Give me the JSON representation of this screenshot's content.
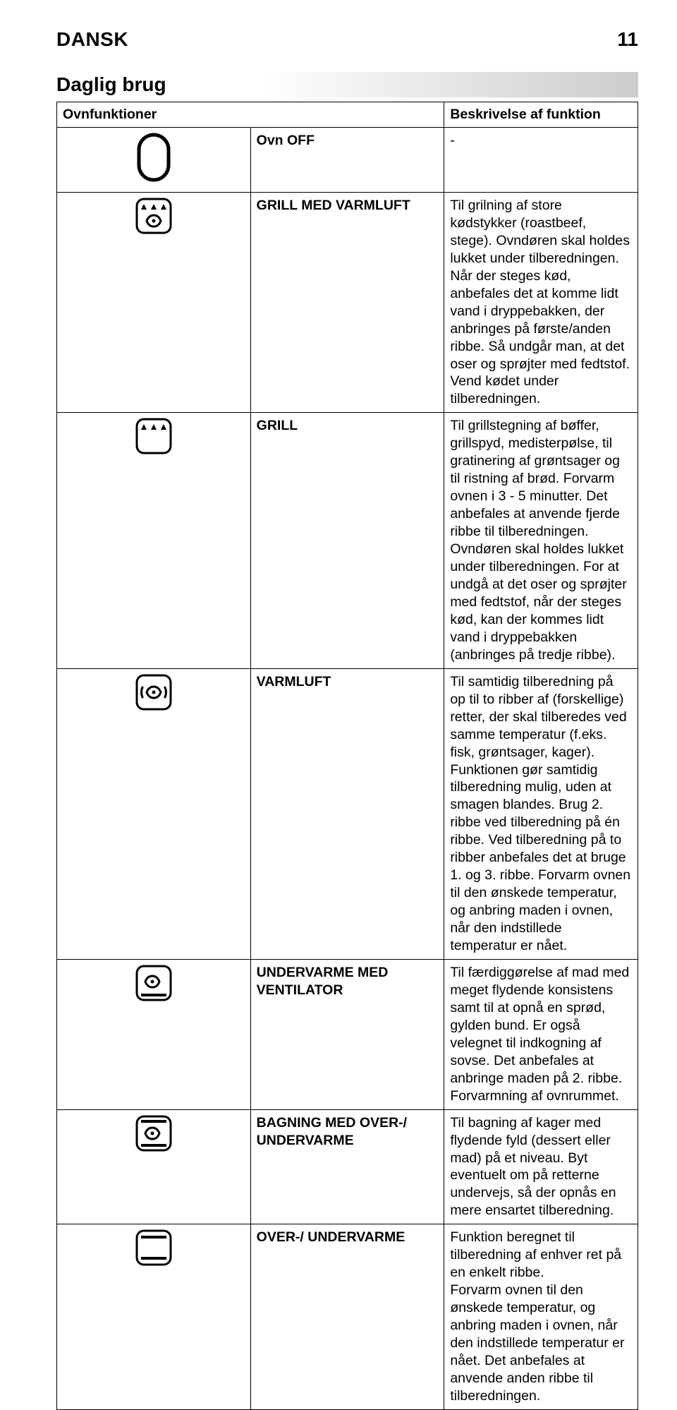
{
  "header": {
    "lang": "DANSK",
    "page": "11"
  },
  "section_title": "Daglig brug",
  "table": {
    "col_func": "Ovnfunktioner",
    "col_desc": "Beskrivelse af funktion",
    "rows": [
      {
        "icon": "oven-off",
        "func": "Ovn OFF",
        "desc": "-"
      },
      {
        "icon": "grill-fan",
        "func": "GRILL MED VARMLUFT",
        "desc": "Til grilning af store kødstykker (roastbeef, stege). Ovndøren skal holdes lukket under tilberedningen. Når der steges kød, anbefales det at komme lidt vand i dryppebakken, der anbringes på første/anden ribbe. Så undgår man, at det oser og sprøjter med fedtstof. Vend kødet under tilberedningen."
      },
      {
        "icon": "grill",
        "func": "GRILL",
        "desc": "Til grillstegning af bøffer, grillspyd, medisterpølse, til gratinering af grøntsager og til ristning af brød. Forvarm ovnen i 3 - 5 minutter. Det anbefales at anvende fjerde ribbe til tilberedningen. Ovndøren skal holdes lukket under tilberedningen. For at undgå at det oser og sprøjter med fedtstof, når der steges kød, kan der kommes lidt vand i dryppebakken (anbringes på tredje ribbe)."
      },
      {
        "icon": "fan-circle",
        "func": "VARMLUFT",
        "desc": "Til samtidig tilberedning på op til to ribber af (forskellige) retter, der skal tilberedes ved samme temperatur (f.eks. fisk, grøntsager, kager). Funktionen gør samtidig tilberedning mulig, uden at smagen blandes. Brug 2. ribbe ved tilberedning på én ribbe. Ved tilberedning på to ribber anbefales det at bruge 1. og 3. ribbe. Forvarm ovnen til den ønskede temperatur, og anbring maden i ovnen, når den indstillede temperatur er nået."
      },
      {
        "icon": "bottom-fan",
        "func": "UNDERVARME MED VENTILATOR",
        "desc": "Til færdiggørelse af mad med meget flydende konsistens samt til at opnå en sprød, gylden bund. Er også velegnet til indkogning af sovse. Det anbefales at anbringe maden på 2. ribbe. Forvarmning af ovnrummet."
      },
      {
        "icon": "top-bottom-fan",
        "func": "BAGNING MED OVER-/ UNDERVARME",
        "desc": "Til bagning af kager med flydende fyld (dessert eller mad) på et niveau. Byt eventuelt om på retterne undervejs, så der opnås en mere ensartet tilberedning."
      },
      {
        "icon": "top-bottom",
        "func": "OVER-/ UNDERVARME",
        "desc": "Funktion beregnet til tilberedning af enhver ret på en enkelt ribbe.\nForvarm ovnen til den ønskede temperatur, og anbring maden i ovnen, når den indstillede temperatur er nået. Det anbefales at anvende anden ribbe til tilberedningen."
      }
    ]
  },
  "styles": {
    "body_bg": "#ffffff",
    "text_color": "#000000",
    "border_color": "#000000",
    "font_family": "Arial, Helvetica, sans-serif",
    "header_fontsize": 28,
    "cell_fontsize": 19.5,
    "icon_stroke": "#000000",
    "icon_stroke_width": 3
  }
}
